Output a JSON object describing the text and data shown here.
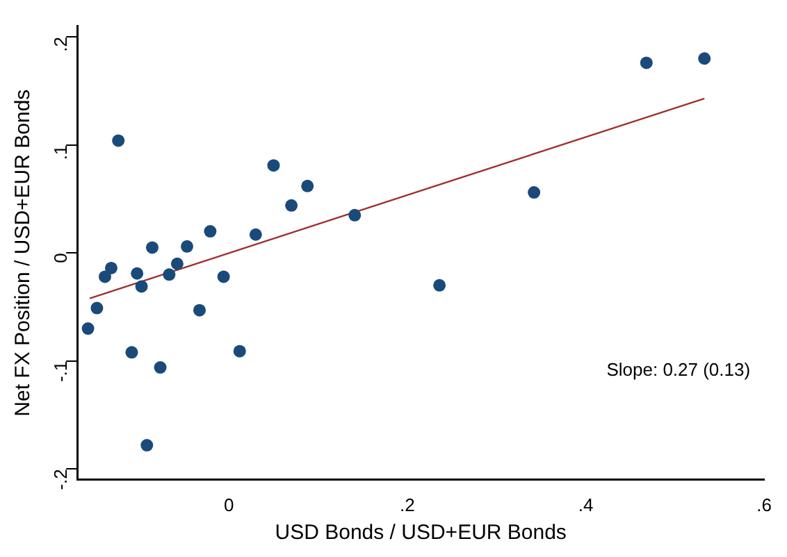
{
  "chart_data": {
    "type": "scatter",
    "xlabel": "USD Bonds / USD+EUR Bonds",
    "ylabel": "Net FX Position / USD+EUR Bonds",
    "xlim": [
      -0.17,
      0.6
    ],
    "ylim": [
      -0.21,
      0.21
    ],
    "xticks": [
      0,
      {
        "value": 0.2,
        "label": ".2"
      },
      {
        "value": 0.4,
        "label": ".4"
      },
      {
        "value": 0.6,
        "label": ".6"
      }
    ],
    "yticks": [
      {
        "value": -0.2,
        "label": "-.2"
      },
      {
        "value": -0.1,
        "label": "-.1"
      },
      0,
      {
        "value": 0.1,
        "label": ".1"
      },
      {
        "value": 0.2,
        "label": ".2"
      }
    ],
    "grid": false,
    "legend": false,
    "annotations": [
      "Slope: 0.27 (0.13)"
    ],
    "series": [
      {
        "color": "#1a4a7a",
        "marker": "circle",
        "x": [
          -0.158,
          -0.148,
          -0.139,
          -0.132,
          -0.124,
          -0.109,
          -0.103,
          -0.098,
          -0.092,
          -0.086,
          -0.077,
          -0.067,
          -0.058,
          -0.047,
          -0.033,
          -0.021,
          -0.006,
          0.012,
          0.03,
          0.05,
          0.07,
          0.088,
          0.141,
          0.236,
          0.342,
          0.468,
          0.533
        ],
        "values": [
          -0.07,
          -0.051,
          -0.022,
          -0.014,
          0.104,
          -0.092,
          -0.019,
          -0.031,
          -0.178,
          0.005,
          -0.106,
          -0.02,
          -0.01,
          0.006,
          -0.053,
          0.02,
          -0.022,
          -0.091,
          0.017,
          0.081,
          0.044,
          0.062,
          0.035,
          -0.03,
          0.056,
          0.176,
          0.18
        ]
      },
      {
        "type": "line",
        "marker": "none",
        "color": "#a03030",
        "x": [
          -0.156,
          0.533
        ],
        "values": [
          -0.042,
          0.143
        ]
      }
    ]
  }
}
